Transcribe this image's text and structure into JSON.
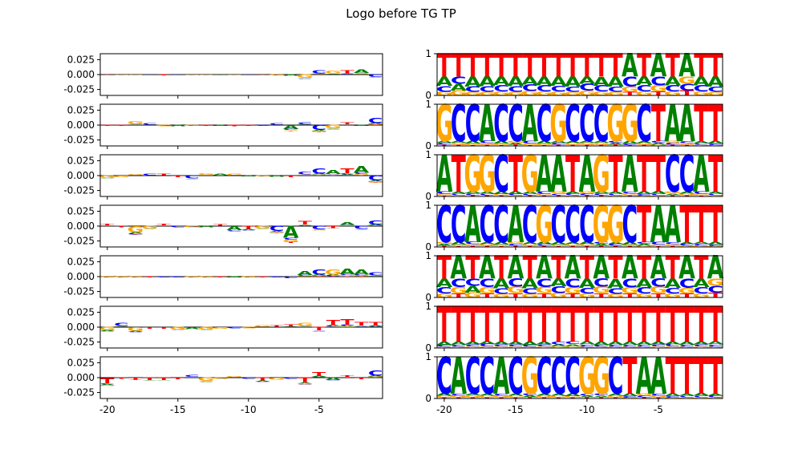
{
  "title": "Logo before TG TP",
  "colors": {
    "A": "#008000",
    "C": "#0000ff",
    "G": "#ffa500",
    "T": "#ff0000",
    "axis": "#000000",
    "zero_line": "#000000"
  },
  "x_tick_labels": [
    "-20",
    "-15",
    "-10",
    "-5"
  ],
  "left_y_tick_labels": [
    "0.025",
    "0.000",
    "-0.025"
  ],
  "right_y_tick_labels": [
    "1",
    "0"
  ],
  "chart_data": {
    "type": "sequence-logo",
    "positions": [
      -20,
      -19,
      -18,
      -17,
      -16,
      -15,
      -14,
      -13,
      -12,
      -11,
      -10,
      -9,
      -8,
      -7,
      -6,
      -5,
      -4,
      -3,
      -2,
      -1
    ],
    "xlim": [
      -20.5,
      -0.5
    ],
    "left_ylim": [
      -0.035,
      0.035
    ],
    "right_ylim": [
      0,
      1
    ],
    "left_panels": [
      {
        "consensus": "TGGCTCGGAGCTGAGCGTAC",
        "signs": [
          -1,
          -1,
          -1,
          -1,
          -1,
          -1,
          -1,
          -1,
          -1,
          -1,
          -1,
          -1,
          -1,
          -1,
          -1,
          1,
          1,
          1,
          1,
          -1
        ],
        "heights": [
          0.001,
          0.001,
          0.001,
          0.001,
          0.002,
          0.001,
          0.001,
          0.001,
          0.001,
          0.001,
          0.001,
          0.001,
          0.002,
          0.003,
          0.008,
          0.007,
          0.006,
          0.007,
          0.008,
          0.006
        ]
      },
      {
        "consensus": "TTGCGAGTATTCCACCGTAC",
        "signs": [
          -1,
          -1,
          1,
          1,
          -1,
          -1,
          -1,
          -1,
          -1,
          -1,
          -1,
          -1,
          1,
          -1,
          1,
          -1,
          -1,
          1,
          -1,
          1
        ],
        "heights": [
          0.002,
          0.002,
          0.006,
          0.003,
          0.003,
          0.003,
          0.002,
          0.002,
          0.002,
          0.003,
          0.002,
          0.002,
          0.003,
          0.01,
          0.005,
          0.012,
          0.008,
          0.005,
          0.002,
          0.012
        ]
      },
      {
        "consensus": "GGGCTTCGAGAGATCCATAC",
        "signs": [
          -1,
          -1,
          1,
          1,
          1,
          -1,
          -1,
          1,
          1,
          1,
          -1,
          -1,
          -1,
          -1,
          1,
          1,
          1,
          1,
          1,
          -1
        ],
        "heights": [
          0.006,
          0.004,
          0.002,
          0.003,
          0.003,
          0.004,
          0.007,
          0.004,
          0.003,
          0.003,
          0.002,
          0.002,
          0.003,
          0.004,
          0.006,
          0.012,
          0.01,
          0.012,
          0.016,
          0.012
        ]
      },
      {
        "consensus": "TTGGTCGATATGCATCTACC",
        "signs": [
          1,
          -1,
          -1,
          -1,
          1,
          -1,
          -1,
          -1,
          1,
          -1,
          -1,
          -1,
          -1,
          -1,
          1,
          -1,
          -1,
          1,
          -1,
          1
        ],
        "heights": [
          0.004,
          0.003,
          0.015,
          0.006,
          0.004,
          0.003,
          0.003,
          0.003,
          0.003,
          0.01,
          0.008,
          0.006,
          0.012,
          0.028,
          0.008,
          0.008,
          0.005,
          0.006,
          0.007,
          0.01
        ]
      },
      {
        "consensus": "GGGTCCGGTAGTCCACGAAC",
        "signs": [
          -1,
          -1,
          -1,
          -1,
          -1,
          -1,
          -1,
          -1,
          -1,
          -1,
          -1,
          -1,
          -1,
          -1,
          1,
          1,
          1,
          1,
          1,
          1
        ],
        "heights": [
          0.002,
          0.002,
          0.002,
          0.002,
          0.002,
          0.002,
          0.002,
          0.002,
          0.002,
          0.002,
          0.002,
          0.002,
          0.002,
          0.004,
          0.01,
          0.012,
          0.012,
          0.014,
          0.012,
          0.007
        ]
      },
      {
        "consensus": "GCGTTGAGGCGGTTGTTTTT",
        "signs": [
          -1,
          1,
          -1,
          -1,
          -1,
          -1,
          -1,
          -1,
          -1,
          -1,
          -1,
          1,
          1,
          1,
          1,
          -1,
          1,
          1,
          1,
          1
        ],
        "heights": [
          0.008,
          0.007,
          0.01,
          0.004,
          0.004,
          0.006,
          0.005,
          0.006,
          0.004,
          0.003,
          0.003,
          0.003,
          0.003,
          0.005,
          0.007,
          0.008,
          0.012,
          0.014,
          0.009,
          0.009
        ]
      },
      {
        "consensus": "TTTTTTCGGGCTGCTTATTC",
        "signs": [
          -1,
          -1,
          -1,
          -1,
          -1,
          -1,
          1,
          -1,
          -1,
          1,
          -1,
          -1,
          -1,
          -1,
          -1,
          1,
          -1,
          1,
          -1,
          1
        ],
        "heights": [
          0.014,
          0.003,
          0.005,
          0.006,
          0.006,
          0.004,
          0.005,
          0.008,
          0.003,
          0.002,
          0.003,
          0.008,
          0.005,
          0.003,
          0.012,
          0.01,
          0.006,
          0.004,
          0.004,
          0.012
        ]
      }
    ],
    "right_panels": [
      {
        "consensus": "TTTTTTTTTTTTTATATATT"
      },
      {
        "consensus": "GCCACCACGCCCGGCTAATT"
      },
      {
        "consensus": "ATGGCTGAATAGTATTCCAT"
      },
      {
        "consensus": "CCACCACGCCCGGCTAATTT"
      },
      {
        "consensus": "TATATATATATATATATATA"
      },
      {
        "consensus": "TTTTTTTTTTTTTTTTTTTT"
      },
      {
        "consensus": "CACCACGCCCGGCTAATTTT"
      }
    ]
  }
}
